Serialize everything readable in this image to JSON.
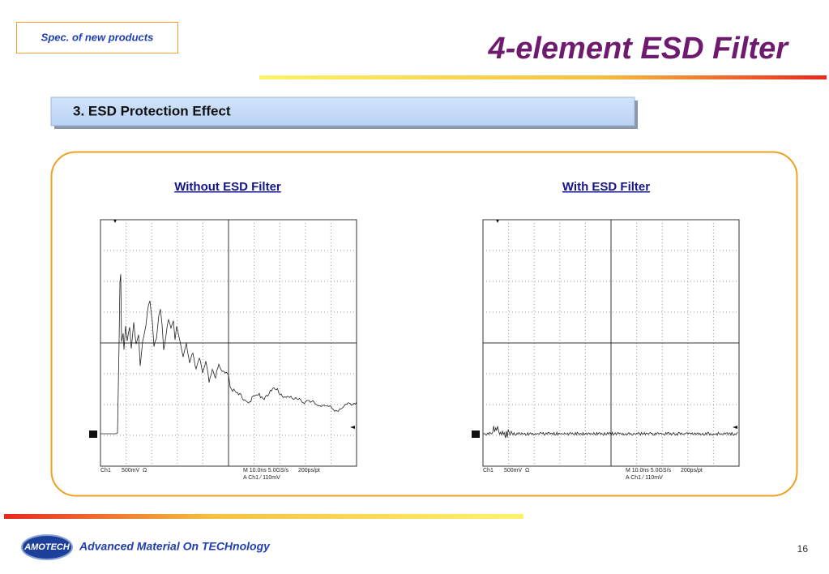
{
  "header": {
    "tag": "Spec. of new products",
    "title": "4-element ESD Filter"
  },
  "section": {
    "heading": "3. ESD Protection Effect"
  },
  "panels": [
    {
      "caption": "Without ESD Filter",
      "scope": {
        "channel": "Ch1",
        "scale": "500mV",
        "impedance": "Ω",
        "timebase": "M 10.0ns 5.0GS/s",
        "resolution": "200ps/pt",
        "trigger": "A Ch1 ⁄ 110mV"
      }
    },
    {
      "caption": "With ESD Filter",
      "scope": {
        "channel": "Ch1",
        "scale": "500mV",
        "impedance": "Ω",
        "timebase": "M 10.0ns 5.0GS/s",
        "resolution": "200ps/pt",
        "trigger": "A Ch1 ⁄ 110mV"
      }
    }
  ],
  "footer": {
    "logo": "AMOTECH",
    "tagline": "Advanced Material On TECHnology",
    "page": 16
  }
}
